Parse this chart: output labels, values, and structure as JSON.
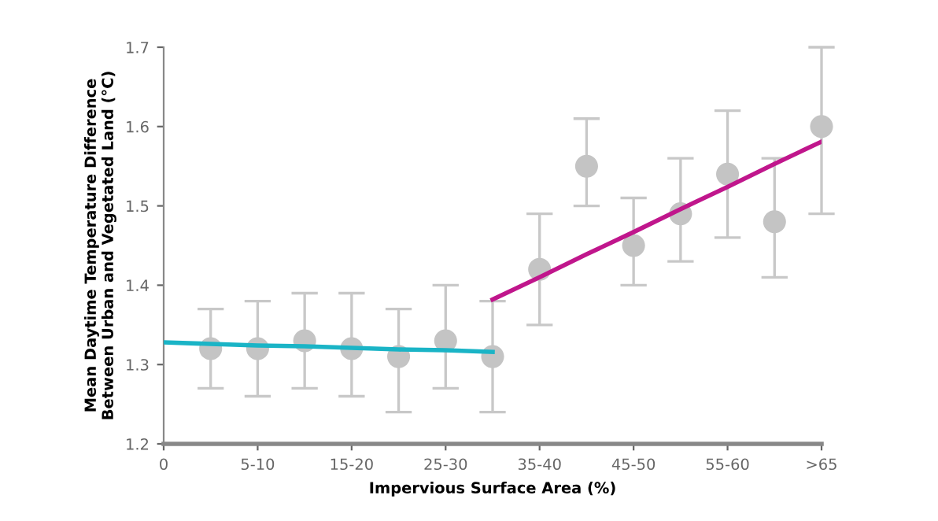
{
  "chart_data": {
    "type": "scatter",
    "xlabel": "Impervious Surface Area (%)",
    "ylabel": "Mean Daytime Temperature Difference\nBetween Urban and Vegetated Land (°C)",
    "categories": [
      "0",
      null,
      "5-10",
      null,
      "15-20",
      null,
      "25-30",
      null,
      "35-40",
      null,
      "45-50",
      null,
      "55-60",
      null,
      ">65"
    ],
    "ylim": [
      1.2,
      1.7
    ],
    "yticks": [
      1.2,
      1.3,
      1.4,
      1.5,
      1.6,
      1.7
    ],
    "series": [
      {
        "color": "#c4c4c4",
        "marker": "circle",
        "values": [
          null,
          1.32,
          1.32,
          1.33,
          1.32,
          1.31,
          1.33,
          1.31,
          1.42,
          1.55,
          1.45,
          1.49,
          1.54,
          1.48,
          1.6
        ],
        "errors": [
          null,
          [
            1.27,
            1.37
          ],
          [
            1.26,
            1.38
          ],
          [
            1.27,
            1.39
          ],
          [
            1.26,
            1.39
          ],
          [
            1.24,
            1.37
          ],
          [
            1.27,
            1.4
          ],
          [
            1.24,
            1.38
          ],
          [
            1.35,
            1.49
          ],
          [
            1.5,
            1.61
          ],
          [
            1.4,
            1.51
          ],
          [
            1.43,
            1.56
          ],
          [
            1.46,
            1.62
          ],
          [
            1.41,
            1.56
          ],
          [
            1.49,
            1.7
          ]
        ]
      },
      {
        "type": "line",
        "color": "#1ab4c6",
        "values": [
          1.328,
          1.326,
          1.324,
          1.323,
          1.321,
          1.319,
          1.318,
          1.316,
          null,
          null,
          null,
          null,
          null,
          null,
          null
        ]
      },
      {
        "type": "line",
        "color": "#c0168c",
        "values": [
          null,
          null,
          null,
          null,
          null,
          null,
          null,
          1.382,
          1.41,
          1.439,
          1.467,
          1.496,
          1.524,
          1.553,
          1.581
        ]
      }
    ]
  }
}
